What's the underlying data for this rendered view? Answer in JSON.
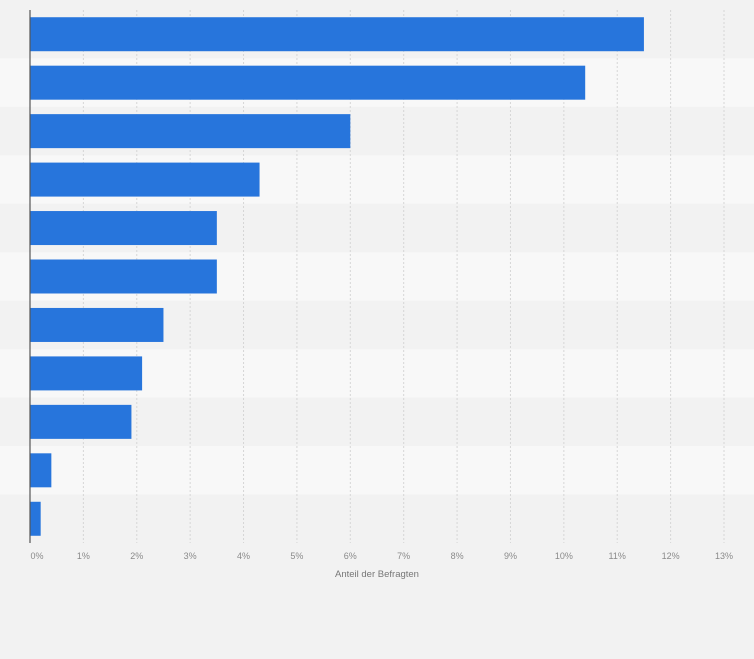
{
  "chart_data": {
    "type": "bar",
    "orientation": "horizontal",
    "categories": [
      "",
      "",
      "",
      "",
      "",
      "",
      "",
      "",
      "",
      "",
      ""
    ],
    "values": [
      11.5,
      10.4,
      6.0,
      4.3,
      3.5,
      3.5,
      2.5,
      2.1,
      1.9,
      0.4,
      0.2
    ],
    "title": "",
    "xlabel": "Anteil der Befragten",
    "ylabel": "",
    "xlim": [
      0,
      13
    ],
    "xticks": [
      "0%",
      "1%",
      "2%",
      "3%",
      "4%",
      "5%",
      "6%",
      "7%",
      "8%",
      "9%",
      "10%",
      "11%",
      "12%",
      "13%"
    ],
    "grid": true,
    "bar_color": "#2775dc",
    "band_colors": [
      "#f2f2f2",
      "#f8f8f8"
    ]
  }
}
